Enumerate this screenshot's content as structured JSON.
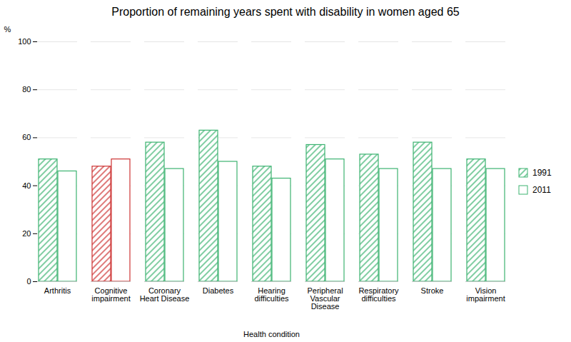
{
  "chart_data": {
    "type": "bar",
    "title": "Proportion of remaining years spent with disability in women aged 65",
    "xlabel": "Health condition",
    "ylabel": "%",
    "categories": [
      "Arthritis",
      "Cognitive\nimpairment",
      "Coronary\nHeart Disease",
      "Diabetes",
      "Hearing\ndifficulties",
      "Peripheral\nVascular\nDisease",
      "Respiratory\ndifficulties",
      "Stroke",
      "Vision\nimpairment"
    ],
    "series": [
      {
        "name": "1991",
        "color": "#3cb371",
        "values": [
          51,
          48,
          58,
          63,
          48,
          57,
          53,
          58,
          51
        ],
        "colors": [
          "#3cb371",
          "#cd3333",
          "#3cb371",
          "#3cb371",
          "#3cb371",
          "#3cb371",
          "#3cb371",
          "#3cb371",
          "#3cb371"
        ]
      },
      {
        "name": "2011",
        "color": "#3cb371",
        "values": [
          46,
          51,
          47,
          50,
          43,
          51,
          47,
          47,
          47
        ],
        "colors": [
          "#3cb371",
          "#cd3333",
          "#3cb371",
          "#3cb371",
          "#3cb371",
          "#3cb371",
          "#3cb371",
          "#3cb371",
          "#3cb371"
        ]
      }
    ],
    "ylim": [
      0,
      100
    ],
    "yticks": [
      0,
      20,
      40,
      60,
      80,
      100
    ],
    "grid": true,
    "legend": "right"
  }
}
